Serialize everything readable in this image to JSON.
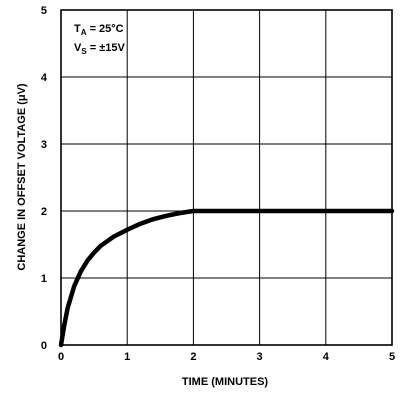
{
  "chart_data": {
    "type": "line",
    "title": "",
    "xlabel": "TIME (MINUTES)",
    "ylabel": "CHANGE IN OFFSET VOLTAGE (μV)",
    "xlim": [
      0,
      5
    ],
    "ylim": [
      0,
      5
    ],
    "xticks": [
      "0",
      "1",
      "2",
      "3",
      "4",
      "5"
    ],
    "yticks": [
      "0",
      "1",
      "2",
      "3",
      "4",
      "5"
    ],
    "grid": true,
    "annotations": {
      "ta_main": "T",
      "ta_sub": "A",
      "ta_value": " = 25°C",
      "vs_main": "V",
      "vs_sub": "S",
      "vs_value": " = ±15V"
    },
    "series": [
      {
        "x": [
          0,
          0.05,
          0.1,
          0.2,
          0.3,
          0.4,
          0.5,
          0.6,
          0.8,
          1.0,
          1.2,
          1.4,
          1.6,
          1.8,
          2.0,
          2.5,
          3.0,
          3.5,
          4.0,
          4.5,
          5.0
        ],
        "values": [
          0,
          0.3,
          0.55,
          0.88,
          1.1,
          1.26,
          1.38,
          1.48,
          1.62,
          1.72,
          1.81,
          1.88,
          1.93,
          1.97,
          2.0,
          2.0,
          2.0,
          2.0,
          2.0,
          2.0,
          2.0
        ]
      }
    ],
    "line_color": "#000000"
  }
}
